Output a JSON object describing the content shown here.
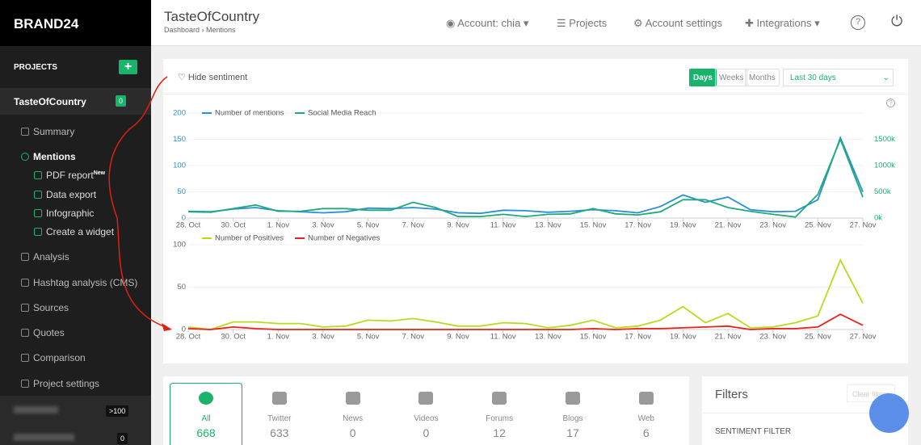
{
  "sidebar": {
    "logo": "BRAND24",
    "projects_label": "PROJECTS",
    "project": {
      "name": "TasteOfCountry",
      "badge": 0
    },
    "menu": [
      "Summary",
      "Mentions"
    ],
    "submenu": [
      "PDF report",
      "Data export",
      "Infographic",
      "Create a widget"
    ],
    "new_tag": "New",
    "menu2": [
      "Analysis",
      "Hashtag analysis (CMS)",
      "Sources",
      "Quotes",
      "Comparison",
      "Project settings"
    ],
    "other_projects": [
      {
        "badge": ">100"
      },
      {
        "badge": 0
      }
    ]
  },
  "header": {
    "title": "TasteOfCountry",
    "breadcrumb": [
      "Dashboard",
      "Mentions"
    ],
    "nav": [
      "Account: chia",
      "Projects",
      "Account settings",
      "Integrations"
    ]
  },
  "controls": {
    "hide_sentiment": "Hide sentiment",
    "periods": [
      "Days",
      "Weeks",
      "Months"
    ],
    "range": "Last 30 days"
  },
  "chart_data": [
    {
      "type": "line",
      "categories": [
        "28. Oct",
        null,
        "30. Oct",
        null,
        "1. Nov",
        null,
        "3. Nov",
        null,
        "5. Nov",
        null,
        "7. Nov",
        null,
        "9. Nov",
        null,
        "11. Nov",
        null,
        "13. Nov",
        null,
        "15. Nov",
        null,
        "17. Nov",
        null,
        "19. Nov",
        null,
        "21. Nov",
        null,
        "23. Nov",
        null,
        "25. Nov",
        null,
        "27. Nov"
      ],
      "series": [
        {
          "name": "Number of mentions",
          "color": "#2a8fd4",
          "values": [
            13,
            12,
            17,
            20,
            14,
            12,
            10,
            12,
            19,
            18,
            20,
            17,
            10,
            9,
            15,
            14,
            11,
            13,
            16,
            14,
            10,
            22,
            44,
            30,
            40,
            16,
            12,
            13,
            35,
            153,
            50
          ]
        },
        {
          "name": "Social Media Reach",
          "color": "#1eaa7d",
          "axis": "y2",
          "values": [
            120000,
            110000,
            180000,
            250000,
            130000,
            130000,
            180000,
            180000,
            150000,
            150000,
            300000,
            200000,
            30000,
            30000,
            70000,
            30000,
            70000,
            80000,
            180000,
            80000,
            60000,
            120000,
            350000,
            350000,
            200000,
            130000,
            70000,
            20000,
            450000,
            1500000,
            400000
          ]
        }
      ],
      "ylim": [
        0,
        200
      ],
      "yticks": [
        0,
        50,
        100,
        150,
        200
      ],
      "y2lim": [
        0,
        2000000
      ],
      "y2ticks": [
        {
          "value": 0,
          "label": "0k"
        },
        {
          "value": 500000,
          "label": "500k"
        },
        {
          "value": 1000000,
          "label": "1000k"
        },
        {
          "value": 1500000,
          "label": "1500k"
        }
      ]
    },
    {
      "type": "line",
      "categories": [
        "28. Oct",
        null,
        "30. Oct",
        null,
        "1. Nov",
        null,
        "3. Nov",
        null,
        "5. Nov",
        null,
        "7. Nov",
        null,
        "9. Nov",
        null,
        "11. Nov",
        null,
        "13. Nov",
        null,
        "15. Nov",
        null,
        "17. Nov",
        null,
        "19. Nov",
        null,
        "21. Nov",
        null,
        "23. Nov",
        null,
        "25. Nov",
        null,
        "27. Nov"
      ],
      "series": [
        {
          "name": "Number of Positives",
          "color": "#b5dd1e",
          "values": [
            3,
            0,
            9,
            9,
            7,
            7,
            3,
            4,
            11,
            10,
            13,
            9,
            4,
            4,
            8,
            7,
            2,
            5,
            11,
            2,
            4,
            11,
            27,
            8,
            19,
            2,
            3,
            8,
            16,
            82,
            31
          ]
        },
        {
          "name": "Number of Negatives",
          "color": "#e8221c",
          "values": [
            1,
            0,
            3,
            1,
            0,
            0,
            0,
            0,
            0,
            0,
            0,
            0,
            0,
            0,
            0,
            0,
            0,
            0,
            1,
            0,
            1,
            1,
            2,
            3,
            4,
            0,
            1,
            1,
            3,
            18,
            5
          ]
        }
      ],
      "ylim": [
        0,
        100
      ],
      "yticks": [
        0,
        50,
        100
      ]
    }
  ],
  "sources": [
    {
      "name": "All",
      "count": 668
    },
    {
      "name": "Twitter",
      "count": 633
    },
    {
      "name": "News",
      "count": 0
    },
    {
      "name": "Videos",
      "count": 0
    },
    {
      "name": "Forums",
      "count": 12
    },
    {
      "name": "Blogs",
      "count": 17
    },
    {
      "name": "Web",
      "count": 6
    }
  ],
  "filters": {
    "title": "Filters",
    "clear": "Clear filters",
    "sentiment": "SENTIMENT FILTER"
  }
}
